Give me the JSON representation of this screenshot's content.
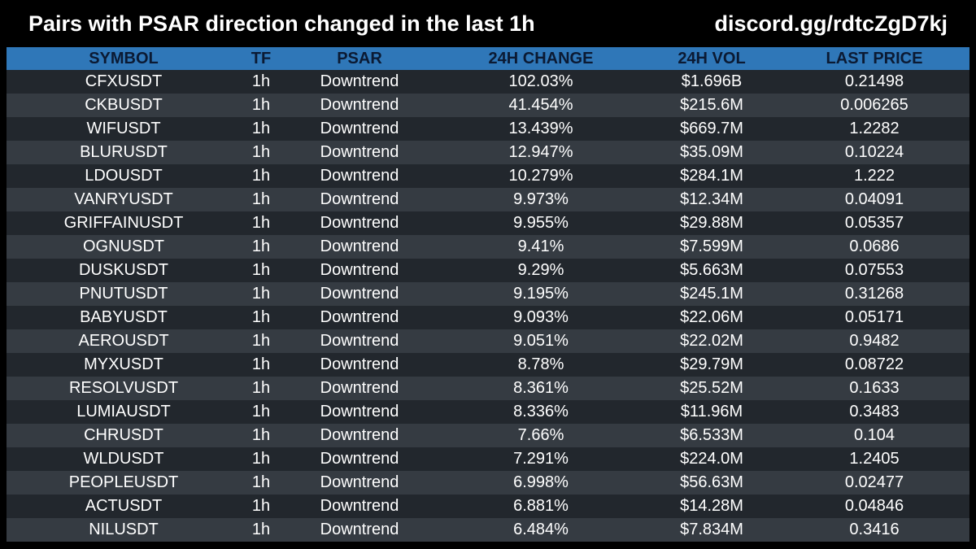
{
  "header": {
    "title": "Pairs with PSAR direction changed in the last 1h",
    "invite": "discord.gg/rdtcZgD7kj"
  },
  "table": {
    "columns": [
      "SYMBOL",
      "TF",
      "PSAR",
      "24H CHANGE",
      "24H VOL",
      "LAST PRICE"
    ],
    "rows": [
      [
        "CFXUSDT",
        "1h",
        "Downtrend",
        "102.03%",
        "$1.696B",
        "0.21498"
      ],
      [
        "CKBUSDT",
        "1h",
        "Downtrend",
        "41.454%",
        "$215.6M",
        "0.006265"
      ],
      [
        "WIFUSDT",
        "1h",
        "Downtrend",
        "13.439%",
        "$669.7M",
        "1.2282"
      ],
      [
        "BLURUSDT",
        "1h",
        "Downtrend",
        "12.947%",
        "$35.09M",
        "0.10224"
      ],
      [
        "LDOUSDT",
        "1h",
        "Downtrend",
        "10.279%",
        "$284.1M",
        "1.222"
      ],
      [
        "VANRYUSDT",
        "1h",
        "Downtrend",
        "9.973%",
        "$12.34M",
        "0.04091"
      ],
      [
        "GRIFFAINUSDT",
        "1h",
        "Downtrend",
        "9.955%",
        "$29.88M",
        "0.05357"
      ],
      [
        "OGNUSDT",
        "1h",
        "Downtrend",
        "9.41%",
        "$7.599M",
        "0.0686"
      ],
      [
        "DUSKUSDT",
        "1h",
        "Downtrend",
        "9.29%",
        "$5.663M",
        "0.07553"
      ],
      [
        "PNUTUSDT",
        "1h",
        "Downtrend",
        "9.195%",
        "$245.1M",
        "0.31268"
      ],
      [
        "BABYUSDT",
        "1h",
        "Downtrend",
        "9.093%",
        "$22.06M",
        "0.05171"
      ],
      [
        "AEROUSDT",
        "1h",
        "Downtrend",
        "9.051%",
        "$22.02M",
        "0.9482"
      ],
      [
        "MYXUSDT",
        "1h",
        "Downtrend",
        "8.78%",
        "$29.79M",
        "0.08722"
      ],
      [
        "RESOLVUSDT",
        "1h",
        "Downtrend",
        "8.361%",
        "$25.52M",
        "0.1633"
      ],
      [
        "LUMIAUSDT",
        "1h",
        "Downtrend",
        "8.336%",
        "$11.96M",
        "0.3483"
      ],
      [
        "CHRUSDT",
        "1h",
        "Downtrend",
        "7.66%",
        "$6.533M",
        "0.104"
      ],
      [
        "WLDUSDT",
        "1h",
        "Downtrend",
        "7.291%",
        "$224.0M",
        "1.2405"
      ],
      [
        "PEOPLEUSDT",
        "1h",
        "Downtrend",
        "6.998%",
        "$56.63M",
        "0.02477"
      ],
      [
        "ACTUSDT",
        "1h",
        "Downtrend",
        "6.881%",
        "$14.28M",
        "0.04846"
      ],
      [
        "NILUSDT",
        "1h",
        "Downtrend",
        "6.484%",
        "$7.834M",
        "0.3416"
      ]
    ]
  },
  "colors": {
    "background": "#000000",
    "header_row": "#2f77b8",
    "row_dark": "#22272d",
    "row_light": "#353b42",
    "text": "#ffffff"
  }
}
